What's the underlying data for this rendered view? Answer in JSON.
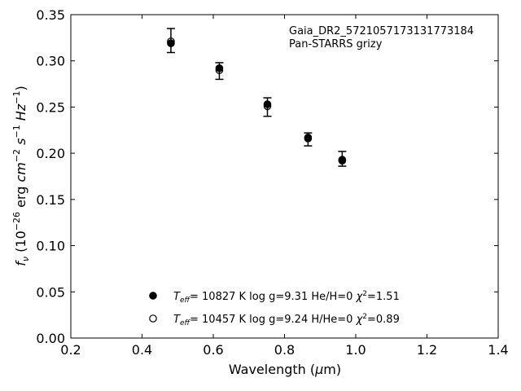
{
  "chart_data": {
    "type": "scatter",
    "title": "",
    "xlabel": "Wavelength (μm)",
    "ylabel": "f_ν (10^-26 erg cm^-2 s^-1 Hz^-1)",
    "xlim": [
      0.2,
      1.4
    ],
    "ylim": [
      0.0,
      0.35
    ],
    "x_ticks": [
      0.2,
      0.4,
      0.6,
      0.8,
      1.0,
      1.2,
      1.4
    ],
    "x_tick_labels": [
      "0.2",
      "0.4",
      "0.6",
      "0.8",
      "1.0",
      "1.2",
      "1.4"
    ],
    "y_ticks": [
      0.0,
      0.05,
      0.1,
      0.15,
      0.2,
      0.25,
      0.3,
      0.35
    ],
    "y_tick_labels": [
      "0.00",
      "0.05",
      "0.10",
      "0.15",
      "0.20",
      "0.25",
      "0.30",
      "0.35"
    ],
    "grid": false,
    "legend_position": "bottom-center",
    "annotation": {
      "line1": "Gaia_DR2_5721057173131773184",
      "line2": "Pan-STARRS grizy"
    },
    "observed": {
      "x": [
        0.481,
        0.617,
        0.752,
        0.866,
        0.962
      ],
      "y": [
        0.322,
        0.289,
        0.25,
        0.215,
        0.194
      ],
      "yerr": [
        0.013,
        0.009,
        0.01,
        0.007,
        0.008
      ]
    },
    "series": [
      {
        "name": "T_eff= 10827 K  log g=9.31  He/H=0  χ²=1.51",
        "marker": "filled-circle",
        "x": [
          0.481,
          0.617,
          0.752,
          0.866,
          0.962
        ],
        "y": [
          0.319,
          0.292,
          0.253,
          0.217,
          0.192
        ]
      },
      {
        "name": "T_eff= 10457 K  log g=9.24  H/He=0  χ²=0.89",
        "marker": "open-circle",
        "x": [
          0.481,
          0.617,
          0.752,
          0.866,
          0.962
        ],
        "y": [
          0.321,
          0.29,
          0.251,
          0.216,
          0.193
        ]
      }
    ]
  }
}
